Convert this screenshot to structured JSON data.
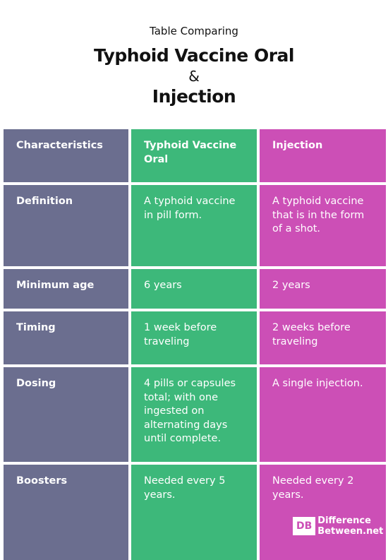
{
  "header": {
    "subtitle": "Table Comparing",
    "title_line1": "Typhoid Vaccine Oral",
    "ampersand": "&",
    "title_line2": "Injection"
  },
  "table": {
    "columns": [
      "Characteristics",
      "Typhoid Vaccine Oral",
      "Injection"
    ],
    "rows": [
      [
        "Definition",
        "A typhoid vaccine in pill form.",
        "A typhoid vaccine that is in the form of a shot."
      ],
      [
        "Minimum age",
        "6 years",
        "2 years"
      ],
      [
        "Timing",
        "1 week before traveling",
        "2 weeks before traveling"
      ],
      [
        "Dosing",
        "4 pills or capsules total; with one ingested on alternating days until complete.",
        "A single injection."
      ],
      [
        "Boosters",
        "Needed every 5 years.",
        "Needed every 2 years."
      ]
    ]
  },
  "footer": {
    "logo_mark": "DB",
    "logo_line1": "Difference",
    "logo_line2": "Between.net"
  }
}
